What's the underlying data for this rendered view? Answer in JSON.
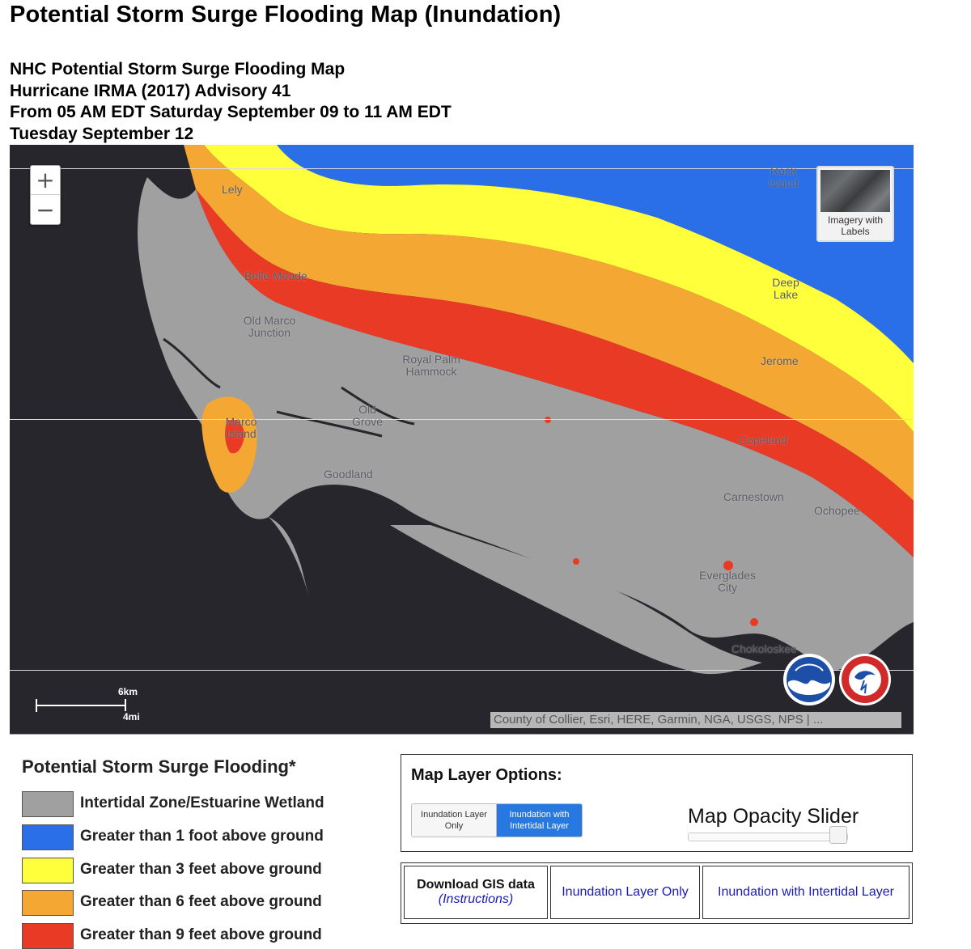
{
  "page": {
    "title": "Potential Storm Surge Flooding Map (Inundation)",
    "subtitle_lines": [
      "NHC Potential Storm Surge Flooding Map",
      "Hurricane IRMA (2017) Advisory 41",
      "From 05 AM EDT Saturday September 09 to 11 AM EDT",
      "Tuesday September 12"
    ]
  },
  "map": {
    "zoom_in": "+",
    "zoom_out": "−",
    "basemap_toggle_label": "Imagery with Labels",
    "places": {
      "rock_island": "Rock Island",
      "lely": "Lely",
      "belle_meade": "Belle Meade",
      "deep_lake": "Deep Lake",
      "old_marco_junction": "Old Marco Junction",
      "royal_palm_hammock": "Royal Palm Hammock",
      "jerome": "Jerome",
      "old_grove": "Old Grove",
      "marco_island": "Marco Island",
      "copeland": "Copeland",
      "goodland": "Goodland",
      "carnestown": "Carnestown",
      "ochopee": "Ochopee",
      "everglades_city": "Everglades City",
      "chokoloskee": "Chokoloskee"
    },
    "scale": {
      "km": "6km",
      "mi": "4mi"
    },
    "attribution": "County of Collier, Esri, HERE, Garmin, NGA, USGS, NPS | ...",
    "logos": [
      "noaa-logo",
      "national-weather-service-logo"
    ]
  },
  "legend": {
    "title": "Potential Storm Surge Flooding*",
    "items": [
      {
        "label": "Intertidal Zone/Estuarine Wetland",
        "color": "#a0a0a0"
      },
      {
        "label": "Greater than 1 foot above ground",
        "color": "#2a6fe8"
      },
      {
        "label": "Greater than 3 feet above ground",
        "color": "#ffff3b"
      },
      {
        "label": "Greater than 6 feet above ground",
        "color": "#f4a733"
      },
      {
        "label": "Greater than 9 feet above ground",
        "color": "#e93a26"
      }
    ]
  },
  "layer_options": {
    "title": "Map Layer Options:",
    "toggle_off": "Inundation Layer Only",
    "toggle_on": "Inundation with Intertidal Layer",
    "opacity_label": "Map Opacity Slider",
    "opacity_value": 0.92
  },
  "downloads": {
    "header": "Download GIS data",
    "instructions": "(Instructions)",
    "link_1": "Inundation Layer Only",
    "link_2": "Inundation with Intertidal Layer"
  }
}
